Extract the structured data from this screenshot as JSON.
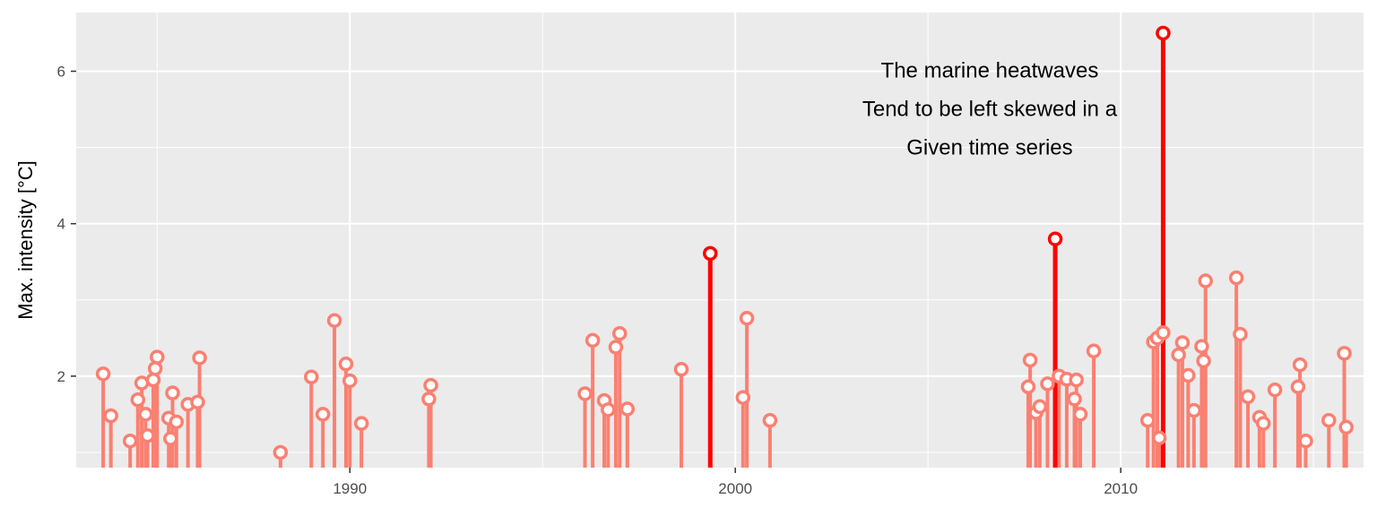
{
  "chart_data": {
    "type": "lollipop",
    "ylabel": "Max. intensity [°C]",
    "xlabel": "",
    "title": "",
    "x_ticks": [
      1990,
      2000,
      2010
    ],
    "y_ticks": [
      2,
      4,
      6
    ],
    "xlim": [
      1982.9,
      2016.3
    ],
    "ylim": [
      0.8,
      6.77
    ],
    "baseline": 0.8,
    "grid": true,
    "annotation": {
      "lines": [
        "The marine heatwaves",
        "Tend to be left skewed in a",
        "Given time series"
      ],
      "x": 2006.6,
      "y": 5.4
    },
    "colors": {
      "panel": "#ebebeb",
      "grid": "#ffffff",
      "normal": "#fa8072",
      "highlight": "#ff0000",
      "point_fill": "#ffffff"
    },
    "series": [
      {
        "name": "",
        "color": "#fa8072",
        "points": [
          [
            1983.6,
            2.03
          ],
          [
            1983.8,
            1.48
          ],
          [
            1984.3,
            1.15
          ],
          [
            1984.5,
            1.69
          ],
          [
            1984.6,
            1.91
          ],
          [
            1984.7,
            1.5
          ],
          [
            1984.75,
            1.22
          ],
          [
            1984.9,
            1.95
          ],
          [
            1985.0,
            2.25
          ],
          [
            1984.95,
            2.1
          ],
          [
            1985.3,
            1.45
          ],
          [
            1985.4,
            1.78
          ],
          [
            1985.5,
            1.4
          ],
          [
            1985.35,
            1.18
          ],
          [
            1985.8,
            1.63
          ],
          [
            1986.1,
            2.24
          ],
          [
            1986.05,
            1.66
          ],
          [
            1988.2,
            1.0
          ],
          [
            1989.0,
            1.99
          ],
          [
            1989.3,
            1.5
          ],
          [
            1989.6,
            2.73
          ],
          [
            1989.9,
            2.16
          ],
          [
            1990.0,
            1.94
          ],
          [
            1990.3,
            1.38
          ],
          [
            1992.1,
            1.88
          ],
          [
            1992.05,
            1.7
          ],
          [
            1996.1,
            1.77
          ],
          [
            1996.3,
            2.47
          ],
          [
            1996.6,
            1.68
          ],
          [
            1996.7,
            1.56
          ],
          [
            1996.9,
            2.38
          ],
          [
            1997.0,
            2.56
          ],
          [
            1997.2,
            1.57
          ],
          [
            1998.6,
            2.09
          ],
          [
            2000.2,
            1.72
          ],
          [
            2000.3,
            2.76
          ],
          [
            2000.9,
            1.42
          ],
          [
            2007.6,
            1.86
          ],
          [
            2007.65,
            2.21
          ],
          [
            2007.8,
            1.52
          ],
          [
            2007.9,
            1.6
          ],
          [
            2008.1,
            1.9
          ],
          [
            2008.4,
            2.0
          ],
          [
            2008.6,
            1.96
          ],
          [
            2008.8,
            1.7
          ],
          [
            2008.85,
            1.95
          ],
          [
            2008.95,
            1.5
          ],
          [
            2009.3,
            2.33
          ],
          [
            2010.7,
            1.42
          ],
          [
            2010.85,
            2.45
          ],
          [
            2010.95,
            2.5
          ],
          [
            2011.0,
            1.19
          ],
          [
            2011.1,
            2.57
          ],
          [
            2011.5,
            2.28
          ],
          [
            2011.6,
            2.44
          ],
          [
            2011.75,
            2.01
          ],
          [
            2011.9,
            1.55
          ],
          [
            2012.1,
            2.39
          ],
          [
            2012.15,
            2.2
          ],
          [
            2012.2,
            3.25
          ],
          [
            2013.0,
            3.29
          ],
          [
            2013.1,
            2.55
          ],
          [
            2013.3,
            1.73
          ],
          [
            2013.6,
            1.46
          ],
          [
            2013.7,
            1.38
          ],
          [
            2014.0,
            1.82
          ],
          [
            2014.6,
            1.86
          ],
          [
            2014.65,
            2.15
          ],
          [
            2014.8,
            1.15
          ],
          [
            2015.4,
            1.42
          ],
          [
            2015.8,
            2.3
          ],
          [
            2015.85,
            1.33
          ]
        ]
      },
      {
        "name": "",
        "color": "#ff0000",
        "points": [
          [
            1999.35,
            3.61
          ],
          [
            2008.3,
            3.8
          ],
          [
            2011.1,
            6.5
          ]
        ]
      }
    ]
  }
}
